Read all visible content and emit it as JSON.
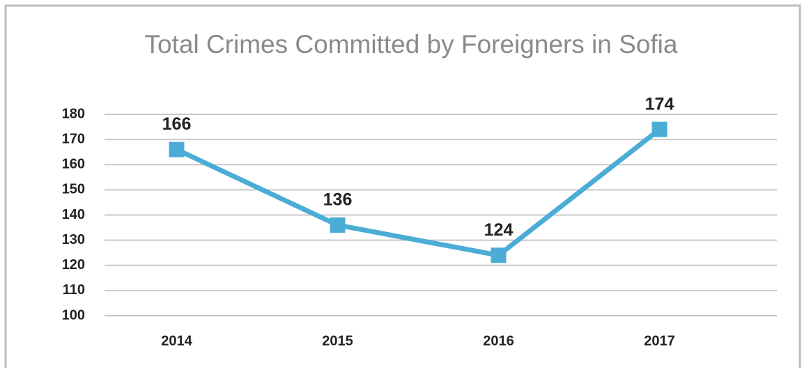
{
  "chart_data": {
    "type": "line",
    "title": "Total Crimes Committed by Foreigners in Sofia",
    "categories": [
      "2014",
      "2015",
      "2016",
      "2017"
    ],
    "series": [
      {
        "name": "Total Crimes",
        "color": "#4bacd6",
        "values": [
          166,
          136,
          124,
          174
        ]
      }
    ],
    "ylim": [
      100,
      180
    ],
    "yticks": [
      100,
      110,
      120,
      130,
      140,
      150,
      160,
      170,
      180
    ],
    "grid": true
  }
}
